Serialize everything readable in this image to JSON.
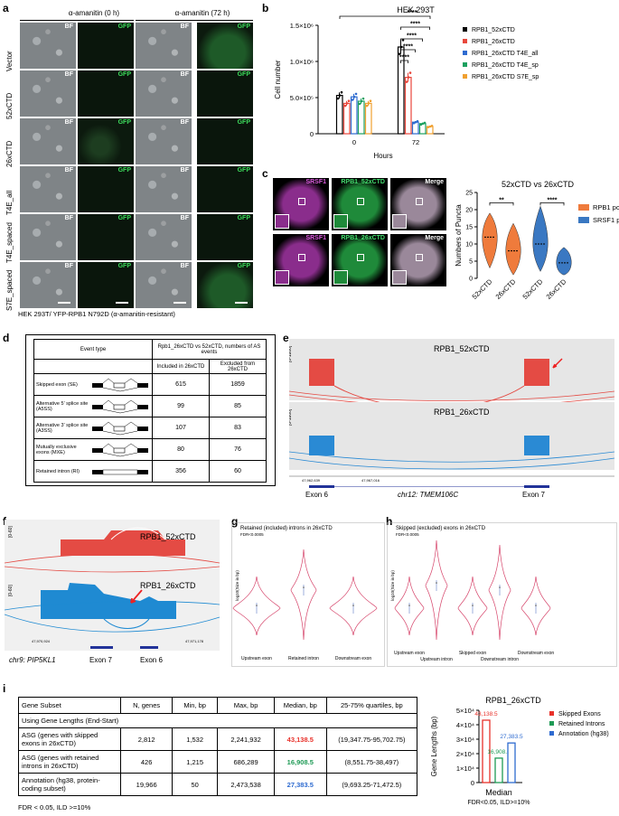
{
  "panels": {
    "a": "a",
    "b": "b",
    "c": "c",
    "d": "d",
    "e": "e",
    "f": "f",
    "g": "g",
    "h": "h",
    "i": "i"
  },
  "panel_a": {
    "header_left": "α-amanitin (0 h)",
    "header_right": "α-amanitin (72 h)",
    "rows": [
      "Vector",
      "52xCTD",
      "26xCTD",
      "T4E_all",
      "T4E_spaced",
      "S7E_spaced"
    ],
    "tag_bf": "BF",
    "tag_gfp": "GFP",
    "caption": "HEK 293T/ YFP-RPB1 N792D (α-amanitin-resistant)"
  },
  "panel_b": {
    "title": "HEK 293T",
    "ylabel": "Cell number",
    "xlabel": "Hours",
    "yticks": [
      "0",
      "5.0×10⁵",
      "1.0×10⁶",
      "1.5×10⁶"
    ],
    "xticks": [
      "0",
      "72"
    ],
    "sig": [
      "****",
      "****",
      "****",
      "****",
      "****"
    ],
    "legend": [
      "RPB1_52xCTD",
      "RPB1_26xCTD",
      "RPB1_26xCTD T4E_all",
      "RPB1_26xCTD T4E_sp",
      "RPB1_26xCTD S7E_sp"
    ],
    "colors": [
      "#000000",
      "#e8473c",
      "#2e6bd0",
      "#1ca05f",
      "#f0a030"
    ]
  },
  "chart_data": [
    {
      "type": "bar",
      "title": "HEK 293T",
      "xlabel": "Hours",
      "ylabel": "Cell number",
      "categories": [
        "0",
        "72"
      ],
      "ylim": [
        0,
        1500000
      ],
      "series": [
        {
          "name": "RPB1_52xCTD",
          "values": [
            530000,
            1200000
          ]
        },
        {
          "name": "RPB1_26xCTD",
          "values": [
            420000,
            780000
          ]
        },
        {
          "name": "RPB1_26xCTD T4E_all",
          "values": [
            510000,
            160000
          ]
        },
        {
          "name": "RPB1_26xCTD T4E_sp",
          "values": [
            450000,
            140000
          ]
        },
        {
          "name": "RPB1_26xCTD S7E_sp",
          "values": [
            420000,
            100000
          ]
        }
      ]
    },
    {
      "type": "bar",
      "title": "RPB1_26xCTD",
      "ylabel": "Gene Lengths (bp)",
      "xlabel": "Median",
      "categories": [
        "Median"
      ],
      "ylim": [
        0,
        50000
      ],
      "series": [
        {
          "name": "Skipped Exons",
          "values": [
            43138.5
          ]
        },
        {
          "name": "Retained Introns",
          "values": [
            16908.5
          ]
        },
        {
          "name": "Annotation (hg38)",
          "values": [
            27383.5
          ]
        }
      ]
    }
  ],
  "panel_c": {
    "title": "52xCTD vs 26xCTD",
    "ylabel": "Numbers of Puncta",
    "yticks": [
      "0",
      "5",
      "10",
      "15",
      "20",
      "25"
    ],
    "xticks": [
      "52xCTD",
      "26xCTD",
      "52xCTD",
      "26xCTD"
    ],
    "sig": [
      "**",
      "****"
    ],
    "legend": [
      "RPB1 positive",
      "SRSF1 positive"
    ],
    "colors": [
      "#ef7b3c",
      "#3a78c2"
    ],
    "img_labels_top": [
      "SRSF1",
      "RPB1_52xCTD",
      "Merge"
    ],
    "img_labels_bottom": [
      "SRSF1",
      "RPB1_26xCTD",
      "Merge"
    ]
  },
  "panel_d": {
    "col1": "Event type",
    "col2": "Rpb1_26xCTD vs 52xCTD, numbers of AS events",
    "col3": "Included in 26xCTD",
    "col4": "Excluded from 26xCTD",
    "rows": [
      {
        "name": "Skipped exon (SE)",
        "inc": "615",
        "exc": "1859"
      },
      {
        "name": "Alternative 5' splice site (A5SS)",
        "inc": "99",
        "exc": "85"
      },
      {
        "name": "Alternative 3' splice site (A3SS)",
        "inc": "107",
        "exc": "83"
      },
      {
        "name": "Mutually exclusive exons (MXE)",
        "inc": "80",
        "exc": "76"
      },
      {
        "name": "Retained intron (RI)",
        "inc": "356",
        "exc": "60"
      }
    ]
  },
  "panel_e": {
    "track1": "RPB1_52xCTD",
    "track2": "RPB1_26xCTD",
    "range": "[0-1800]",
    "coord_left": "47,962,639",
    "coord_right": "47,967,016",
    "exon_left": "Exon 6",
    "gene": "chr12: TMEM106C",
    "exon_right": "Exon 7"
  },
  "panel_f": {
    "track1": "RPB1_52xCTD",
    "track2": "RPB1_26xCTD",
    "range": "[0-60]",
    "coord_left": "47,970,924",
    "coord_right": "47,971,178",
    "gene": "chr9: PIP5KL1",
    "exon_a": "Exon 7",
    "exon_b": "Exon 6"
  },
  "panel_g": {
    "title": "Retained (included) introns in 26xCTD",
    "fdr": "FDR<0.0005",
    "ylabel": "log10(Size in bp)",
    "xticks": [
      "Upstream exon",
      "Retained intron",
      "Downstream exon"
    ]
  },
  "panel_h": {
    "title": "Skipped (excluded) exons in 26xCTD",
    "fdr": "FDR<0.0005",
    "ylabel": "log10(Size in bp)",
    "xticks_top": [
      "Upstream exon",
      "Skipped exon",
      "Downstream exon"
    ],
    "xticks_bottom": [
      "Upstream intron",
      "Downstream intron"
    ]
  },
  "panel_i": {
    "headers": [
      "Gene Subset",
      "N, genes",
      "Min, bp",
      "Max, bp",
      "Median, bp",
      "25-75% quartiles, bp"
    ],
    "subheader": "Using Gene Lengths (End-Start)",
    "rows": [
      {
        "name": "ASG (genes with skipped exons in 26xCTD)",
        "n": "2,812",
        "min": "1,532",
        "max": "2,241,932",
        "median": "43,138.5",
        "q": "(19,347.75-95,702.75)",
        "color": "#e8312a"
      },
      {
        "name": "ASG (genes with retained introns in 26xCTD)",
        "n": "426",
        "min": "1,215",
        "max": "686,289",
        "median": "16,908.5",
        "q": "(8,551.75-38,497)",
        "color": "#1e9a55"
      },
      {
        "name": "Annotation (hg38, protein-coding subset)",
        "n": "19,966",
        "min": "50",
        "max": "2,473,538",
        "median": "27,383.5",
        "q": "(9,693.25-71,472.5)",
        "color": "#2e6bd0"
      }
    ],
    "footnote": "FDR < 0.05, ILD >=10%",
    "chart_title": "RPB1_26xCTD",
    "chart_ylabel": "Gene Lengths (bp)",
    "chart_yticks": [
      "0",
      "1×10⁴",
      "2×10⁴",
      "3×10⁴",
      "4×10⁴",
      "5×10⁴"
    ],
    "chart_xlabel": "Median",
    "chart_foot": "FDR<0.05, ILD>=10%",
    "bar_labels": [
      "43,138.5",
      "16,908.5",
      "27,383.5"
    ],
    "legend": [
      "Skipped Exons",
      "Retained Introns",
      "Annotation (hg38)"
    ],
    "colors": [
      "#e8312a",
      "#1e9a55",
      "#2e6bd0"
    ]
  }
}
